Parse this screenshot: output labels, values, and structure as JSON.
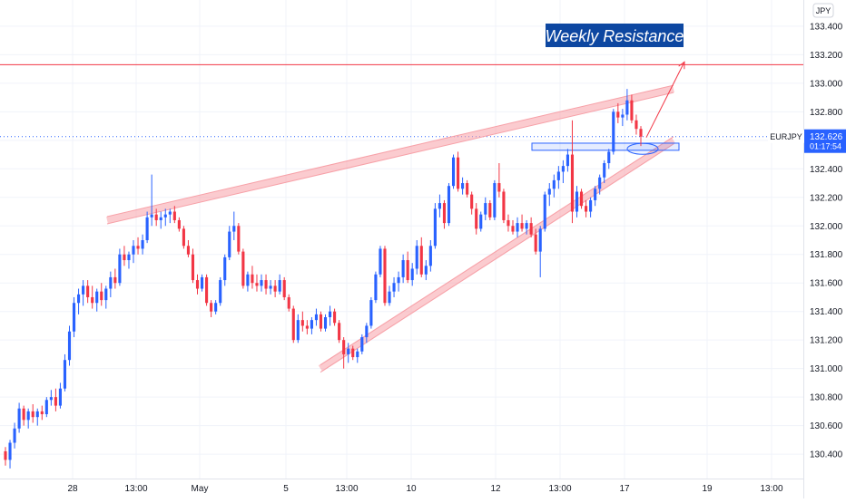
{
  "chart_data": {
    "type": "candlestick",
    "symbol": "EURJPY",
    "currency": "JPY",
    "last_price": "132.626",
    "countdown": "01:17:54",
    "annotation": "Weekly Resistance",
    "resistance_level": 133.13,
    "y_ticks": [
      "133.400",
      "133.200",
      "133.000",
      "132.800",
      "132.600",
      "132.400",
      "132.200",
      "132.000",
      "131.800",
      "131.600",
      "131.400",
      "131.200",
      "131.000",
      "130.800",
      "130.600",
      "130.400"
    ],
    "x_ticks": [
      "28",
      "13:00",
      "May",
      "5",
      "13:00",
      "10",
      "12",
      "13:00",
      "17",
      "19",
      "13:00"
    ],
    "ylim": [
      130.28,
      133.52
    ],
    "candles": [
      [
        130.42,
        130.45,
        130.32,
        130.36
      ],
      [
        130.36,
        130.5,
        130.3,
        130.48
      ],
      [
        130.48,
        130.62,
        130.44,
        130.58
      ],
      [
        130.58,
        130.76,
        130.55,
        130.72
      ],
      [
        130.72,
        130.74,
        130.6,
        130.64
      ],
      [
        130.64,
        130.72,
        130.58,
        130.7
      ],
      [
        130.7,
        130.75,
        130.62,
        130.66
      ],
      [
        130.66,
        130.72,
        130.6,
        130.7
      ],
      [
        130.7,
        130.74,
        130.64,
        130.68
      ],
      [
        130.68,
        130.8,
        130.66,
        130.78
      ],
      [
        130.78,
        130.85,
        130.74,
        130.8
      ],
      [
        130.8,
        130.86,
        130.7,
        130.74
      ],
      [
        130.74,
        130.9,
        130.72,
        130.86
      ],
      [
        130.86,
        131.1,
        130.84,
        131.06
      ],
      [
        131.06,
        131.3,
        131.02,
        131.26
      ],
      [
        131.26,
        131.5,
        131.22,
        131.46
      ],
      [
        131.46,
        131.56,
        131.38,
        131.52
      ],
      [
        131.52,
        131.62,
        131.44,
        131.58
      ],
      [
        131.58,
        131.62,
        131.46,
        131.5
      ],
      [
        131.5,
        131.58,
        131.42,
        131.46
      ],
      [
        131.46,
        131.56,
        131.4,
        131.54
      ],
      [
        131.54,
        131.6,
        131.44,
        131.48
      ],
      [
        131.48,
        131.58,
        131.42,
        131.56
      ],
      [
        131.56,
        131.68,
        131.5,
        131.64
      ],
      [
        131.64,
        131.7,
        131.56,
        131.6
      ],
      [
        131.6,
        131.84,
        131.58,
        131.8
      ],
      [
        131.8,
        131.86,
        131.72,
        131.76
      ],
      [
        131.76,
        131.82,
        131.7,
        131.8
      ],
      [
        131.8,
        131.9,
        131.74,
        131.86
      ],
      [
        131.86,
        131.92,
        131.8,
        131.84
      ],
      [
        131.84,
        131.94,
        131.8,
        131.9
      ],
      [
        131.9,
        132.1,
        131.88,
        132.06
      ],
      [
        132.06,
        132.36,
        132.0,
        132.08
      ],
      [
        132.08,
        132.12,
        132.0,
        132.04
      ],
      [
        132.04,
        132.1,
        131.98,
        132.06
      ],
      [
        132.06,
        132.12,
        132.0,
        132.08
      ],
      [
        132.08,
        132.12,
        132.02,
        132.1
      ],
      [
        132.1,
        132.14,
        132.02,
        132.04
      ],
      [
        132.04,
        132.06,
        131.96,
        131.98
      ],
      [
        131.98,
        132.0,
        131.84,
        131.86
      ],
      [
        131.86,
        131.9,
        131.78,
        131.8
      ],
      [
        131.8,
        131.84,
        131.6,
        131.62
      ],
      [
        131.62,
        131.66,
        131.52,
        131.56
      ],
      [
        131.56,
        131.66,
        131.54,
        131.64
      ],
      [
        131.64,
        131.66,
        131.44,
        131.46
      ],
      [
        131.46,
        131.48,
        131.36,
        131.4
      ],
      [
        131.4,
        131.48,
        131.38,
        131.46
      ],
      [
        131.46,
        131.64,
        131.44,
        131.62
      ],
      [
        131.62,
        131.8,
        131.58,
        131.78
      ],
      [
        131.78,
        132.0,
        131.76,
        131.96
      ],
      [
        131.96,
        132.1,
        131.9,
        132.0
      ],
      [
        132.0,
        132.02,
        131.8,
        131.82
      ],
      [
        131.82,
        131.84,
        131.56,
        131.58
      ],
      [
        131.58,
        131.68,
        131.54,
        131.66
      ],
      [
        131.66,
        131.72,
        131.56,
        131.6
      ],
      [
        131.6,
        131.66,
        131.54,
        131.58
      ],
      [
        131.58,
        131.66,
        131.54,
        131.62
      ],
      [
        131.62,
        131.66,
        131.52,
        131.56
      ],
      [
        131.56,
        131.62,
        131.52,
        131.58
      ],
      [
        131.58,
        131.62,
        131.5,
        131.54
      ],
      [
        131.54,
        131.66,
        131.52,
        131.62
      ],
      [
        131.62,
        131.64,
        131.48,
        131.5
      ],
      [
        131.5,
        131.52,
        131.4,
        131.42
      ],
      [
        131.42,
        131.44,
        131.18,
        131.2
      ],
      [
        131.2,
        131.38,
        131.18,
        131.34
      ],
      [
        131.34,
        131.4,
        131.26,
        131.3
      ],
      [
        131.3,
        131.34,
        131.24,
        131.28
      ],
      [
        131.28,
        131.36,
        131.24,
        131.34
      ],
      [
        131.34,
        131.42,
        131.3,
        131.38
      ],
      [
        131.38,
        131.4,
        131.26,
        131.28
      ],
      [
        131.28,
        131.38,
        131.26,
        131.36
      ],
      [
        131.36,
        131.44,
        131.3,
        131.4
      ],
      [
        131.4,
        131.42,
        131.3,
        131.32
      ],
      [
        131.32,
        131.34,
        131.18,
        131.2
      ],
      [
        131.2,
        131.22,
        131.0,
        131.1
      ],
      [
        131.1,
        131.18,
        131.04,
        131.14
      ],
      [
        131.14,
        131.16,
        131.06,
        131.08
      ],
      [
        131.08,
        131.14,
        131.04,
        131.12
      ],
      [
        131.12,
        131.24,
        131.1,
        131.22
      ],
      [
        131.22,
        131.32,
        131.18,
        131.3
      ],
      [
        131.3,
        131.5,
        131.28,
        131.48
      ],
      [
        131.48,
        131.68,
        131.46,
        131.66
      ],
      [
        131.66,
        131.86,
        131.64,
        131.84
      ],
      [
        131.84,
        131.86,
        131.44,
        131.46
      ],
      [
        131.46,
        131.58,
        131.44,
        131.54
      ],
      [
        131.54,
        131.64,
        131.5,
        131.6
      ],
      [
        131.6,
        131.68,
        131.54,
        131.64
      ],
      [
        131.64,
        131.8,
        131.6,
        131.76
      ],
      [
        131.76,
        131.82,
        131.6,
        131.62
      ],
      [
        131.62,
        131.74,
        131.58,
        131.7
      ],
      [
        131.7,
        131.9,
        131.66,
        131.86
      ],
      [
        131.86,
        131.92,
        131.64,
        131.66
      ],
      [
        131.66,
        131.76,
        131.62,
        131.72
      ],
      [
        131.72,
        131.9,
        131.68,
        131.86
      ],
      [
        131.86,
        132.16,
        131.84,
        132.12
      ],
      [
        132.12,
        132.22,
        132.06,
        132.16
      ],
      [
        132.16,
        132.18,
        131.98,
        132.02
      ],
      [
        132.02,
        132.3,
        132.0,
        132.28
      ],
      [
        132.28,
        132.5,
        132.26,
        132.48
      ],
      [
        132.48,
        132.52,
        132.24,
        132.26
      ],
      [
        132.26,
        132.34,
        132.22,
        132.3
      ],
      [
        132.3,
        132.32,
        132.2,
        132.22
      ],
      [
        132.22,
        132.24,
        132.08,
        132.12
      ],
      [
        132.12,
        132.16,
        131.94,
        131.98
      ],
      [
        131.98,
        132.1,
        131.96,
        132.08
      ],
      [
        132.08,
        132.2,
        132.04,
        132.16
      ],
      [
        132.16,
        132.18,
        132.04,
        132.06
      ],
      [
        132.06,
        132.32,
        132.04,
        132.3
      ],
      [
        132.3,
        132.44,
        132.2,
        132.24
      ],
      [
        132.24,
        132.26,
        132.02,
        132.04
      ],
      [
        132.04,
        132.08,
        131.96,
        132.0
      ],
      [
        132.0,
        132.04,
        131.94,
        131.96
      ],
      [
        131.96,
        132.06,
        131.92,
        132.02
      ],
      [
        132.02,
        132.08,
        131.96,
        131.98
      ],
      [
        131.98,
        132.04,
        131.94,
        132.02
      ],
      [
        132.02,
        132.06,
        131.92,
        131.94
      ],
      [
        131.94,
        131.98,
        131.8,
        131.82
      ],
      [
        131.82,
        132.0,
        131.64,
        131.98
      ],
      [
        131.98,
        132.24,
        131.96,
        132.22
      ],
      [
        132.22,
        132.3,
        132.14,
        132.26
      ],
      [
        132.26,
        132.36,
        132.2,
        132.32
      ],
      [
        132.32,
        132.42,
        132.26,
        132.38
      ],
      [
        132.38,
        132.46,
        132.3,
        132.42
      ],
      [
        132.42,
        132.54,
        132.38,
        132.5
      ],
      [
        132.5,
        132.74,
        132.02,
        132.1
      ],
      [
        132.1,
        132.28,
        132.06,
        132.24
      ],
      [
        132.24,
        132.26,
        132.12,
        132.14
      ],
      [
        132.14,
        132.18,
        132.06,
        132.1
      ],
      [
        132.1,
        132.2,
        132.06,
        132.18
      ],
      [
        132.18,
        132.28,
        132.14,
        132.26
      ],
      [
        132.26,
        132.36,
        132.22,
        132.34
      ],
      [
        132.34,
        132.46,
        132.3,
        132.44
      ],
      [
        132.44,
        132.54,
        132.4,
        132.52
      ],
      [
        132.52,
        132.82,
        132.5,
        132.8
      ],
      [
        132.8,
        132.86,
        132.72,
        132.76
      ],
      [
        132.76,
        132.82,
        132.7,
        132.78
      ],
      [
        132.78,
        132.96,
        132.74,
        132.88
      ],
      [
        132.88,
        132.92,
        132.72,
        132.74
      ],
      [
        132.74,
        132.78,
        132.64,
        132.68
      ],
      [
        132.68,
        132.7,
        132.56,
        132.626
      ]
    ]
  }
}
